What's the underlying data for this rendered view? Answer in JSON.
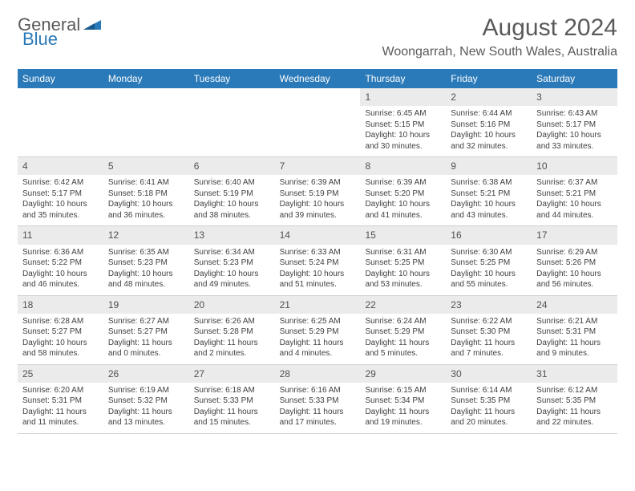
{
  "logo": {
    "part1": "General",
    "part2": "Blue"
  },
  "title": "August 2024",
  "location": "Woongarrah, New South Wales, Australia",
  "colors": {
    "header_bg": "#2a79b8",
    "header_text": "#ffffff",
    "daynum_bg": "#ebebeb",
    "logo_gray": "#5a5a5a",
    "logo_blue": "#2a79b8"
  },
  "dayHeaders": [
    "Sunday",
    "Monday",
    "Tuesday",
    "Wednesday",
    "Thursday",
    "Friday",
    "Saturday"
  ],
  "weeks": [
    [
      {
        "empty": true
      },
      {
        "empty": true
      },
      {
        "empty": true
      },
      {
        "empty": true
      },
      {
        "day": "1",
        "sunrise": "Sunrise: 6:45 AM",
        "sunset": "Sunset: 5:15 PM",
        "daylight": "Daylight: 10 hours and 30 minutes."
      },
      {
        "day": "2",
        "sunrise": "Sunrise: 6:44 AM",
        "sunset": "Sunset: 5:16 PM",
        "daylight": "Daylight: 10 hours and 32 minutes."
      },
      {
        "day": "3",
        "sunrise": "Sunrise: 6:43 AM",
        "sunset": "Sunset: 5:17 PM",
        "daylight": "Daylight: 10 hours and 33 minutes."
      }
    ],
    [
      {
        "day": "4",
        "sunrise": "Sunrise: 6:42 AM",
        "sunset": "Sunset: 5:17 PM",
        "daylight": "Daylight: 10 hours and 35 minutes."
      },
      {
        "day": "5",
        "sunrise": "Sunrise: 6:41 AM",
        "sunset": "Sunset: 5:18 PM",
        "daylight": "Daylight: 10 hours and 36 minutes."
      },
      {
        "day": "6",
        "sunrise": "Sunrise: 6:40 AM",
        "sunset": "Sunset: 5:19 PM",
        "daylight": "Daylight: 10 hours and 38 minutes."
      },
      {
        "day": "7",
        "sunrise": "Sunrise: 6:39 AM",
        "sunset": "Sunset: 5:19 PM",
        "daylight": "Daylight: 10 hours and 39 minutes."
      },
      {
        "day": "8",
        "sunrise": "Sunrise: 6:39 AM",
        "sunset": "Sunset: 5:20 PM",
        "daylight": "Daylight: 10 hours and 41 minutes."
      },
      {
        "day": "9",
        "sunrise": "Sunrise: 6:38 AM",
        "sunset": "Sunset: 5:21 PM",
        "daylight": "Daylight: 10 hours and 43 minutes."
      },
      {
        "day": "10",
        "sunrise": "Sunrise: 6:37 AM",
        "sunset": "Sunset: 5:21 PM",
        "daylight": "Daylight: 10 hours and 44 minutes."
      }
    ],
    [
      {
        "day": "11",
        "sunrise": "Sunrise: 6:36 AM",
        "sunset": "Sunset: 5:22 PM",
        "daylight": "Daylight: 10 hours and 46 minutes."
      },
      {
        "day": "12",
        "sunrise": "Sunrise: 6:35 AM",
        "sunset": "Sunset: 5:23 PM",
        "daylight": "Daylight: 10 hours and 48 minutes."
      },
      {
        "day": "13",
        "sunrise": "Sunrise: 6:34 AM",
        "sunset": "Sunset: 5:23 PM",
        "daylight": "Daylight: 10 hours and 49 minutes."
      },
      {
        "day": "14",
        "sunrise": "Sunrise: 6:33 AM",
        "sunset": "Sunset: 5:24 PM",
        "daylight": "Daylight: 10 hours and 51 minutes."
      },
      {
        "day": "15",
        "sunrise": "Sunrise: 6:31 AM",
        "sunset": "Sunset: 5:25 PM",
        "daylight": "Daylight: 10 hours and 53 minutes."
      },
      {
        "day": "16",
        "sunrise": "Sunrise: 6:30 AM",
        "sunset": "Sunset: 5:25 PM",
        "daylight": "Daylight: 10 hours and 55 minutes."
      },
      {
        "day": "17",
        "sunrise": "Sunrise: 6:29 AM",
        "sunset": "Sunset: 5:26 PM",
        "daylight": "Daylight: 10 hours and 56 minutes."
      }
    ],
    [
      {
        "day": "18",
        "sunrise": "Sunrise: 6:28 AM",
        "sunset": "Sunset: 5:27 PM",
        "daylight": "Daylight: 10 hours and 58 minutes."
      },
      {
        "day": "19",
        "sunrise": "Sunrise: 6:27 AM",
        "sunset": "Sunset: 5:27 PM",
        "daylight": "Daylight: 11 hours and 0 minutes."
      },
      {
        "day": "20",
        "sunrise": "Sunrise: 6:26 AM",
        "sunset": "Sunset: 5:28 PM",
        "daylight": "Daylight: 11 hours and 2 minutes."
      },
      {
        "day": "21",
        "sunrise": "Sunrise: 6:25 AM",
        "sunset": "Sunset: 5:29 PM",
        "daylight": "Daylight: 11 hours and 4 minutes."
      },
      {
        "day": "22",
        "sunrise": "Sunrise: 6:24 AM",
        "sunset": "Sunset: 5:29 PM",
        "daylight": "Daylight: 11 hours and 5 minutes."
      },
      {
        "day": "23",
        "sunrise": "Sunrise: 6:22 AM",
        "sunset": "Sunset: 5:30 PM",
        "daylight": "Daylight: 11 hours and 7 minutes."
      },
      {
        "day": "24",
        "sunrise": "Sunrise: 6:21 AM",
        "sunset": "Sunset: 5:31 PM",
        "daylight": "Daylight: 11 hours and 9 minutes."
      }
    ],
    [
      {
        "day": "25",
        "sunrise": "Sunrise: 6:20 AM",
        "sunset": "Sunset: 5:31 PM",
        "daylight": "Daylight: 11 hours and 11 minutes."
      },
      {
        "day": "26",
        "sunrise": "Sunrise: 6:19 AM",
        "sunset": "Sunset: 5:32 PM",
        "daylight": "Daylight: 11 hours and 13 minutes."
      },
      {
        "day": "27",
        "sunrise": "Sunrise: 6:18 AM",
        "sunset": "Sunset: 5:33 PM",
        "daylight": "Daylight: 11 hours and 15 minutes."
      },
      {
        "day": "28",
        "sunrise": "Sunrise: 6:16 AM",
        "sunset": "Sunset: 5:33 PM",
        "daylight": "Daylight: 11 hours and 17 minutes."
      },
      {
        "day": "29",
        "sunrise": "Sunrise: 6:15 AM",
        "sunset": "Sunset: 5:34 PM",
        "daylight": "Daylight: 11 hours and 19 minutes."
      },
      {
        "day": "30",
        "sunrise": "Sunrise: 6:14 AM",
        "sunset": "Sunset: 5:35 PM",
        "daylight": "Daylight: 11 hours and 20 minutes."
      },
      {
        "day": "31",
        "sunrise": "Sunrise: 6:12 AM",
        "sunset": "Sunset: 5:35 PM",
        "daylight": "Daylight: 11 hours and 22 minutes."
      }
    ]
  ]
}
